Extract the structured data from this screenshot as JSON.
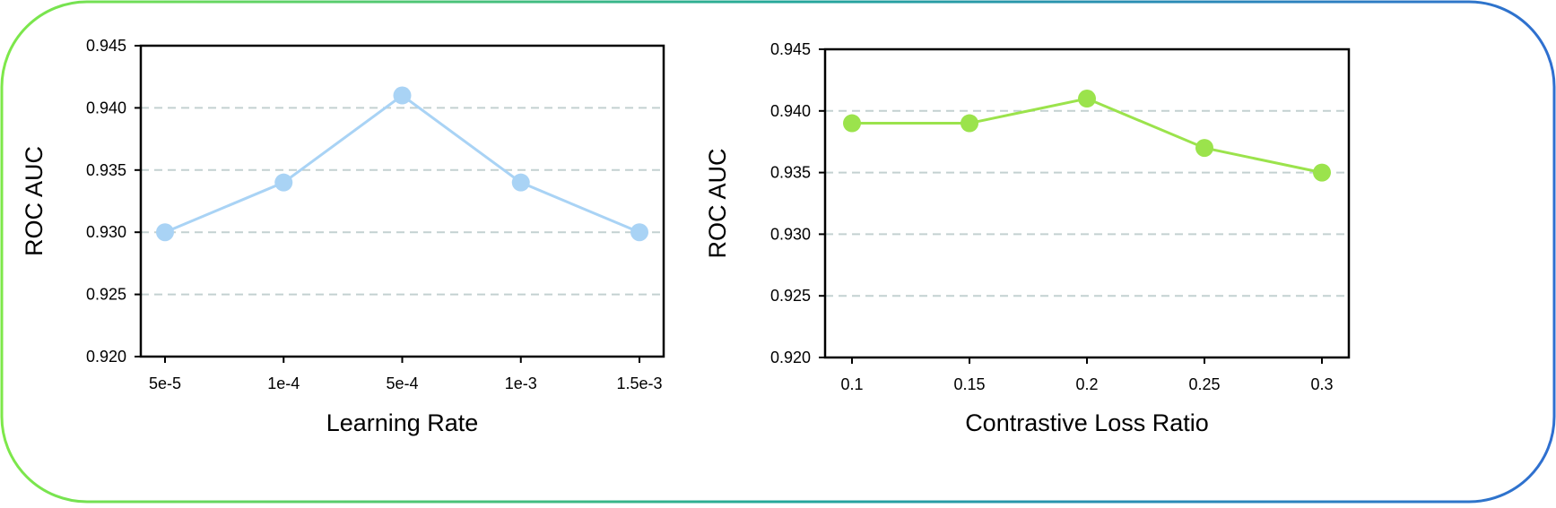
{
  "frame": {
    "gradient_start": "#7ee84a",
    "gradient_mid": "#25a89a",
    "gradient_end": "#2f6fd0"
  },
  "chart_data": [
    {
      "type": "line",
      "categories": [
        "5e-5",
        "1e-4",
        "5e-4",
        "1e-3",
        "1.5e-3"
      ],
      "series": [
        {
          "values": [
            0.93,
            0.934,
            0.941,
            0.934,
            0.93
          ]
        }
      ],
      "xlabel": "Learning Rate",
      "ylabel": "ROC AUC",
      "ylim": [
        0.92,
        0.945
      ],
      "yticks": [
        "0.920",
        "0.925",
        "0.930",
        "0.935",
        "0.940",
        "0.945"
      ],
      "grid": "horizontal dashed",
      "color": "#a9d3f5"
    },
    {
      "type": "line",
      "categories": [
        "0.1",
        "0.15",
        "0.2",
        "0.25",
        "0.3"
      ],
      "series": [
        {
          "values": [
            0.939,
            0.939,
            0.941,
            0.937,
            0.935
          ]
        }
      ],
      "xlabel": "Contrastive Loss Ratio",
      "ylabel": "ROC AUC",
      "ylim": [
        0.92,
        0.945
      ],
      "yticks": [
        "0.920",
        "0.925",
        "0.930",
        "0.935",
        "0.940",
        "0.945"
      ],
      "grid": "horizontal dashed",
      "color": "#9be34c"
    }
  ]
}
